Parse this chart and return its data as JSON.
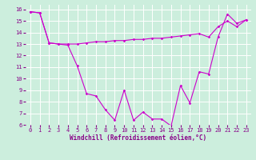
{
  "xlabel": "Windchill (Refroidissement éolien,°C)",
  "ylabel": "",
  "background_color": "#cceedd",
  "grid_color": "#aaddcc",
  "line_color": "#cc00cc",
  "x": [
    0,
    1,
    2,
    3,
    4,
    5,
    6,
    7,
    8,
    9,
    10,
    11,
    12,
    13,
    14,
    15,
    16,
    17,
    18,
    19,
    20,
    21,
    22,
    23
  ],
  "temp_line": [
    15.8,
    15.7,
    13.1,
    13.0,
    12.9,
    11.1,
    8.7,
    8.5,
    7.3,
    6.4,
    9.0,
    6.4,
    7.1,
    6.5,
    6.5,
    5.9,
    9.4,
    7.9,
    10.6,
    10.4,
    13.6,
    15.6,
    14.8,
    15.1
  ],
  "windchill_line": [
    15.8,
    15.7,
    13.1,
    13.0,
    13.0,
    13.0,
    13.1,
    13.2,
    13.2,
    13.3,
    13.3,
    13.4,
    13.4,
    13.5,
    13.5,
    13.6,
    13.7,
    13.8,
    13.9,
    13.6,
    14.5,
    15.0,
    14.5,
    15.1
  ],
  "ylim": [
    6,
    16.4
  ],
  "xlim": [
    -0.5,
    23.5
  ],
  "yticks": [
    6,
    7,
    8,
    9,
    10,
    11,
    12,
    13,
    14,
    15,
    16
  ],
  "xticks": [
    0,
    1,
    2,
    3,
    4,
    5,
    6,
    7,
    8,
    9,
    10,
    11,
    12,
    13,
    14,
    15,
    16,
    17,
    18,
    19,
    20,
    21,
    22,
    23
  ],
  "tick_fontsize": 5,
  "xlabel_fontsize": 5.5,
  "marker": "D",
  "markersize": 1.8,
  "linewidth": 0.8
}
